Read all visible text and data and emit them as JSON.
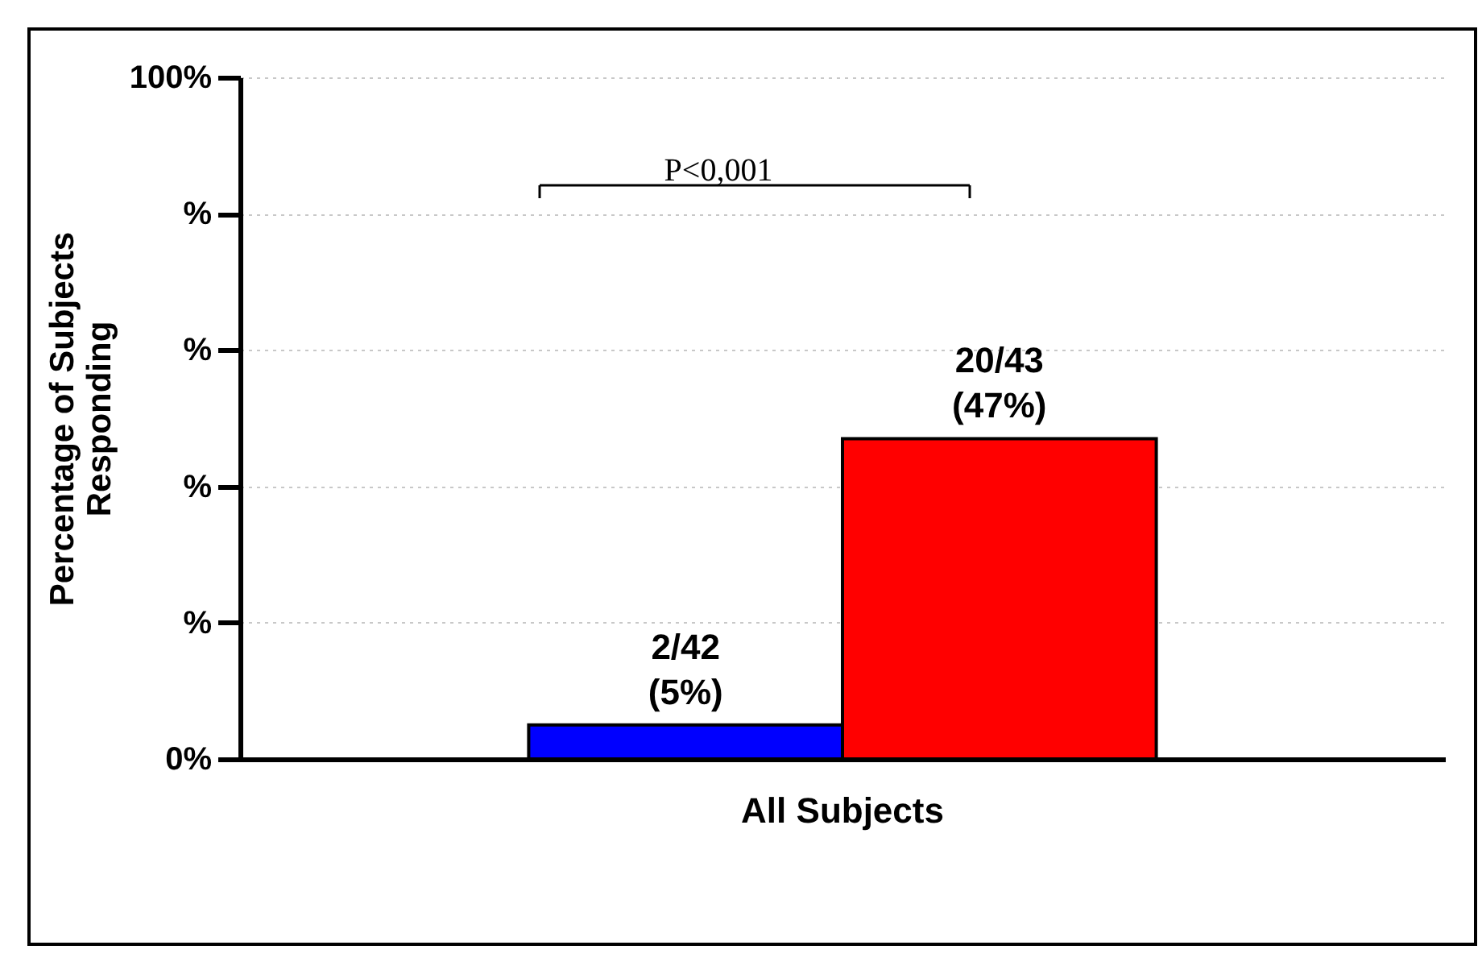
{
  "chart_data": {
    "type": "bar",
    "ylabel": "Percentage of Subjects\nResponding",
    "categories": [
      "All Subjects"
    ],
    "series": [
      {
        "color": "#0000ff",
        "values": [
          5
        ],
        "value_labels": [
          "2/42\n(5%)"
        ]
      },
      {
        "color": "#ff0000",
        "values": [
          47
        ],
        "value_labels": [
          "20/43\n(47%)"
        ]
      }
    ],
    "ylim": [
      0,
      100
    ],
    "yticks": [
      {
        "value": 0,
        "label": "0%"
      },
      {
        "value": 20,
        "label": "%"
      },
      {
        "value": 40,
        "label": "%"
      },
      {
        "value": 60,
        "label": "%"
      },
      {
        "value": 80,
        "label": "%"
      },
      {
        "value": 100,
        "label": "100%"
      }
    ],
    "grid": "y",
    "annotations": [
      "P<0,001"
    ]
  }
}
